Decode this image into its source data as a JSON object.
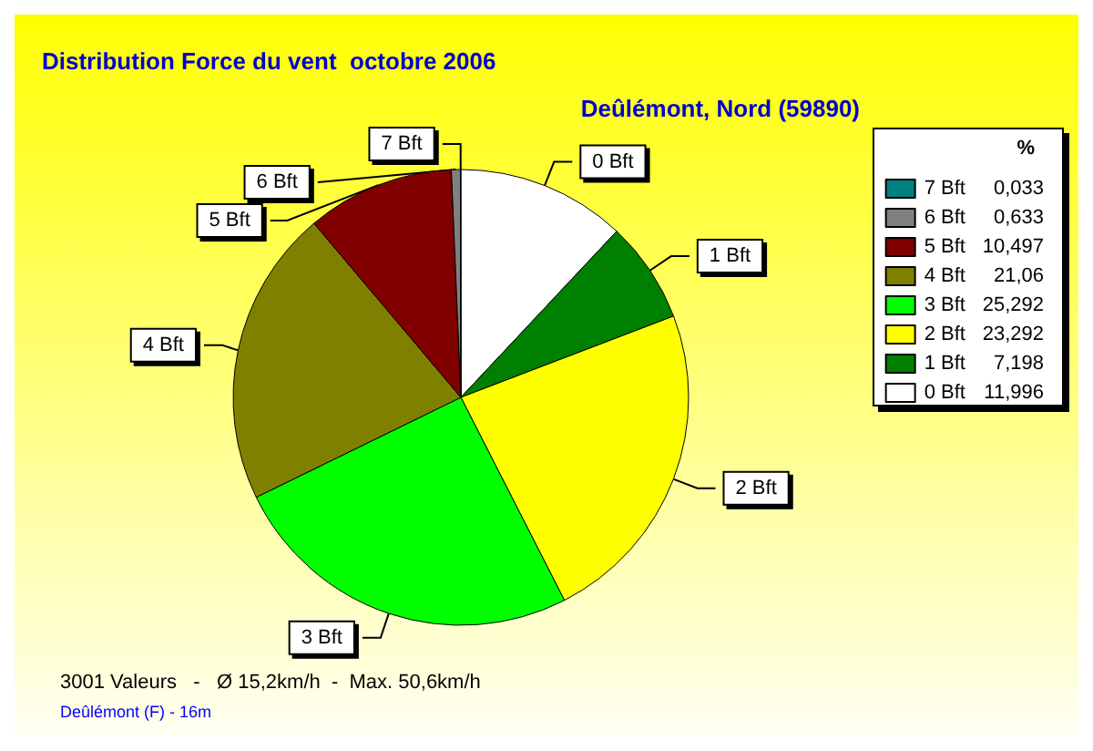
{
  "chart_data": {
    "type": "pie",
    "title": "Distribution Force du vent  octobre 2006",
    "subtitle": "Deûlémont, Nord (59890)",
    "legend_title": "%",
    "legend": "right",
    "categories": [
      "7 Bft",
      "6 Bft",
      "5 Bft",
      "4 Bft",
      "3 Bft",
      "2 Bft",
      "1 Bft",
      "0 Bft"
    ],
    "values": [
      0.033,
      0.633,
      10.497,
      21.06,
      25.292,
      23.292,
      7.198,
      11.996
    ],
    "value_labels": [
      "0,033",
      "0,633",
      "10,497",
      "21,06",
      "25,292",
      "23,292",
      "7,198",
      "11,996"
    ],
    "colors": [
      "#008080",
      "#808080",
      "#800000",
      "#808000",
      "#00ff00",
      "#ffff00",
      "#008000",
      "#ffffff"
    ],
    "annotations": [
      "3001 Valeurs   -   Ø 15,2km/h  -  Max. 50,6km/h",
      "Deûlémont (F) - 16m"
    ]
  }
}
